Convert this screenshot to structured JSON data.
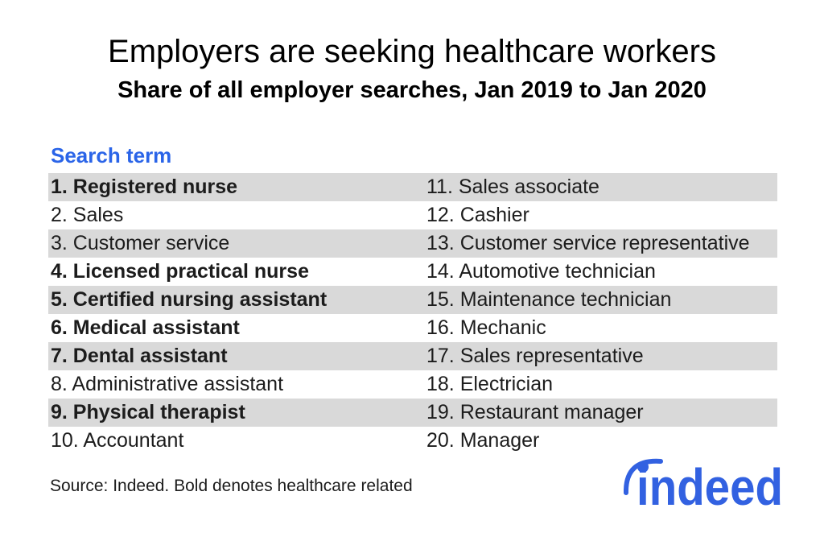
{
  "chart_data": {
    "type": "table",
    "title": "Employers are seeking healthcare workers",
    "subtitle": "Share of all employer searches, Jan 2019 to Jan 2020",
    "column_header": "Search term",
    "layout": {
      "columns": 2,
      "rows_per_column": 10,
      "striped_rows": "odd ranks shaded gray",
      "legend_position": "none"
    },
    "rows": [
      {
        "rank": "1",
        "term": "Registered nurse",
        "healthcare_bold": true
      },
      {
        "rank": "2",
        "term": "Sales",
        "healthcare_bold": false
      },
      {
        "rank": "3",
        "term": "Customer service",
        "healthcare_bold": false
      },
      {
        "rank": "4",
        "term": "Licensed practical nurse",
        "healthcare_bold": true
      },
      {
        "rank": "5",
        "term": "Certified nursing assistant",
        "healthcare_bold": true
      },
      {
        "rank": "6",
        "term": "Medical assistant",
        "healthcare_bold": true
      },
      {
        "rank": "7",
        "term": "Dental assistant",
        "healthcare_bold": true
      },
      {
        "rank": "8",
        "term": "Administrative assistant",
        "healthcare_bold": false
      },
      {
        "rank": "9",
        "term": "Physical therapist",
        "healthcare_bold": true
      },
      {
        "rank": "10",
        "term": "Accountant",
        "healthcare_bold": false
      },
      {
        "rank": "11",
        "term": "Sales associate",
        "healthcare_bold": false
      },
      {
        "rank": "12",
        "term": "Cashier",
        "healthcare_bold": false
      },
      {
        "rank": "13",
        "term": "Customer service representative",
        "healthcare_bold": false
      },
      {
        "rank": "14",
        "term": "Automotive technician",
        "healthcare_bold": false
      },
      {
        "rank": "15",
        "term": "Maintenance technician",
        "healthcare_bold": false
      },
      {
        "rank": "16",
        "term": "Mechanic",
        "healthcare_bold": false
      },
      {
        "rank": "17",
        "term": "Sales representative",
        "healthcare_bold": false
      },
      {
        "rank": "18",
        "term": "Electrician",
        "healthcare_bold": false
      },
      {
        "rank": "19",
        "term": "Restaurant manager",
        "healthcare_bold": false
      },
      {
        "rank": "20",
        "term": "Manager",
        "healthcare_bold": false
      }
    ],
    "note": "Bold denotes healthcare related"
  },
  "footer": {
    "source": "Source: Indeed. Bold denotes healthcare related"
  },
  "logo": {
    "text": "indeed"
  },
  "colors": {
    "accent_blue": "#2a64e8",
    "stripe_gray": "#d9d9d9",
    "logo_blue": "#3261e1",
    "text": "#1c1c1c",
    "background": "#ffffff"
  }
}
